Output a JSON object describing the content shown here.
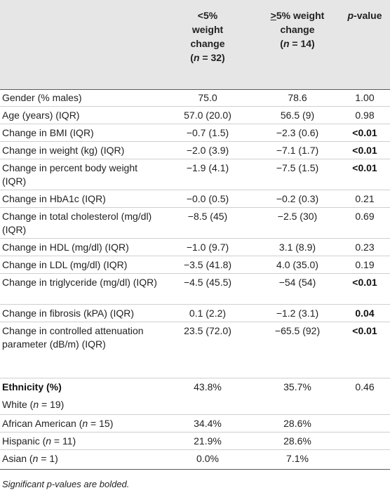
{
  "header": {
    "col1": [
      "<5%",
      "weight",
      "change"
    ],
    "col1_n_prefix": "(",
    "col1_n_var": "n",
    "col1_n_suffix": " = 32)",
    "col2_ge": ">",
    "col2_line1_rest": "5% weight",
    "col2_line2": "change",
    "col2_n_prefix": "(",
    "col2_n_var": "n",
    "col2_n_suffix": " = 14)",
    "col3_p": "p",
    "col3_rest": "-value"
  },
  "rows": [
    {
      "label": "Gender (% males)",
      "a": "75.0",
      "b": "78.6",
      "p": "1.00",
      "sig": false
    },
    {
      "label": "Age (years) (IQR)",
      "a": "57.0 (20.0)",
      "b": "56.5 (9)",
      "p": "0.98",
      "sig": false
    },
    {
      "label": "Change in BMI (IQR)",
      "a": "−0.7 (1.5)",
      "b": "−2.3 (0.6)",
      "p": "<0.01",
      "sig": true
    },
    {
      "label": "Change in weight (kg) (IQR)",
      "a": "−2.0 (3.9)",
      "b": "−7.1 (1.7)",
      "p": "<0.01",
      "sig": true
    },
    {
      "label": "Change in percent body weight (IQR)",
      "a": "−1.9 (4.1)",
      "b": "−7.5 (1.5)",
      "p": "<0.01",
      "sig": true
    },
    {
      "label": "Change in HbA1c (IQR)",
      "a": "−0.0 (0.5)",
      "b": "−0.2 (0.3)",
      "p": "0.21",
      "sig": false
    },
    {
      "label": "Change in total cholesterol (mg/dl) (IQR)",
      "a": "−8.5 (45)",
      "b": "−2.5 (30)",
      "p": "0.69",
      "sig": false
    },
    {
      "label": "Change in HDL (mg/dl) (IQR)",
      "a": "−1.0 (9.7)",
      "b": "3.1 (8.9)",
      "p": "0.23",
      "sig": false
    },
    {
      "label": "Change in LDL (mg/dl) (IQR)",
      "a": "−3.5 (41.8)",
      "b": "4.0 (35.0)",
      "p": "0.19",
      "sig": false
    },
    {
      "label": "Change in triglyceride (mg/dl) (IQR)",
      "a": "−4.5 (45.5)",
      "b": "−54 (54)",
      "p": "<0.01",
      "sig": true
    },
    {
      "label": "Change in fibrosis (kPA) (IQR)",
      "a": "0.1 (2.2)",
      "b": "−1.2 (3.1)",
      "p": "0.04",
      "sig": true
    },
    {
      "label": "Change in controlled attenuation parameter (dB/m) (IQR)",
      "a": "23.5 (72.0)",
      "b": "−65.5 (92)",
      "p": "<0.01",
      "sig": true
    }
  ],
  "ethnicity": {
    "heading": "Ethnicity (%)",
    "white_label": "White (",
    "white_n": "n",
    "white_suffix": " = 19)",
    "white_a": "43.8%",
    "white_b": "35.7%",
    "white_p": "0.46",
    "aa_label": "African American (",
    "aa_n": "n",
    "aa_suffix": " = 15)",
    "aa_a": "34.4%",
    "aa_b": "28.6%",
    "hisp_label": "Hispanic (",
    "hisp_n": "n",
    "hisp_suffix": " = 11)",
    "hisp_a": "21.9%",
    "hisp_b": "28.6%",
    "asian_label": "Asian (",
    "asian_n": "n",
    "asian_suffix": " = 1)",
    "asian_a": "0.0%",
    "asian_b": "7.1%"
  },
  "footnote": "Significant p-values are bolded."
}
